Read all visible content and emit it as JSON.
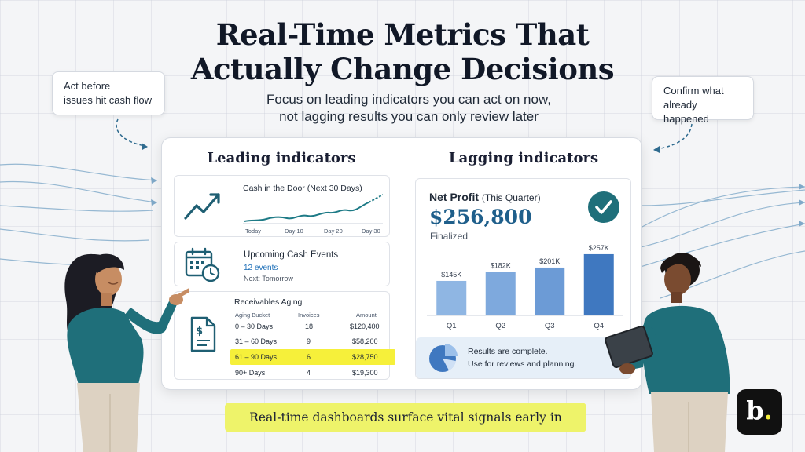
{
  "header": {
    "title_line1": "Real-Time Metrics That",
    "title_line2": "Actually Change Decisions",
    "subtitle_line1": "Focus on leading indicators you can act on now,",
    "subtitle_line2": "not lagging results you can only review later"
  },
  "callouts": {
    "left_line1": "Act before",
    "left_line2": "issues hit cash flow",
    "right_line1": "Confirm what",
    "right_line2": "already happened"
  },
  "leading": {
    "heading": "Leading indicators",
    "cash_card": {
      "title": "Cash in the Door (Next 30 Days)",
      "ticks": [
        "Today",
        "Day 10",
        "Day 20",
        "Day 30"
      ],
      "icon": "trend-up-icon"
    },
    "events_card": {
      "title": "Upcoming Cash Events",
      "count": "12 events",
      "next": "Next: Tomorrow",
      "icon": "calendar-clock-icon"
    },
    "aging_card": {
      "title": "Receivables Aging",
      "icon": "invoice-dollar-icon",
      "columns": [
        "Aging Bucket",
        "Invoices",
        "Amount"
      ],
      "rows": [
        {
          "bucket": "0 – 30 Days",
          "invoices": "18",
          "amount": "$120,400"
        },
        {
          "bucket": "31 – 60 Days",
          "invoices": "9",
          "amount": "$58,200"
        },
        {
          "bucket": "61 – 90 Days",
          "invoices": "6",
          "amount": "$28,750"
        },
        {
          "bucket": "90+ Days",
          "invoices": "4",
          "amount": "$19,300"
        }
      ],
      "highlight_row": 2,
      "highlight_color": "#f6f03a"
    }
  },
  "lagging": {
    "heading": "Lagging indicators",
    "net_profit": {
      "title": "Net Profit",
      "title_qualifier": "(This Quarter)",
      "value": "$256,800",
      "status": "Finalized",
      "icon": "check-circle-icon",
      "accent": "#1f6f7a"
    },
    "results": {
      "line1": "Results are complete.",
      "line2": "Use for reviews and planning.",
      "icon": "pie-chart-icon"
    }
  },
  "chart_data": {
    "type": "bar",
    "categories": [
      "Q1",
      "Q2",
      "Q3",
      "Q4"
    ],
    "values": [
      145,
      182,
      201,
      257
    ],
    "labels": [
      "$145K",
      "$182K",
      "$201K",
      "$257K"
    ],
    "colors": [
      "#8fb6e3",
      "#7ea9dd",
      "#6c9bd6",
      "#3f78c0"
    ],
    "ylim": [
      0,
      270
    ]
  },
  "footer": {
    "banner": "Real-time dashboards surface vital signals early in",
    "logo_letter": "b",
    "logo_dot": ".",
    "banner_color": "#eef36a"
  }
}
